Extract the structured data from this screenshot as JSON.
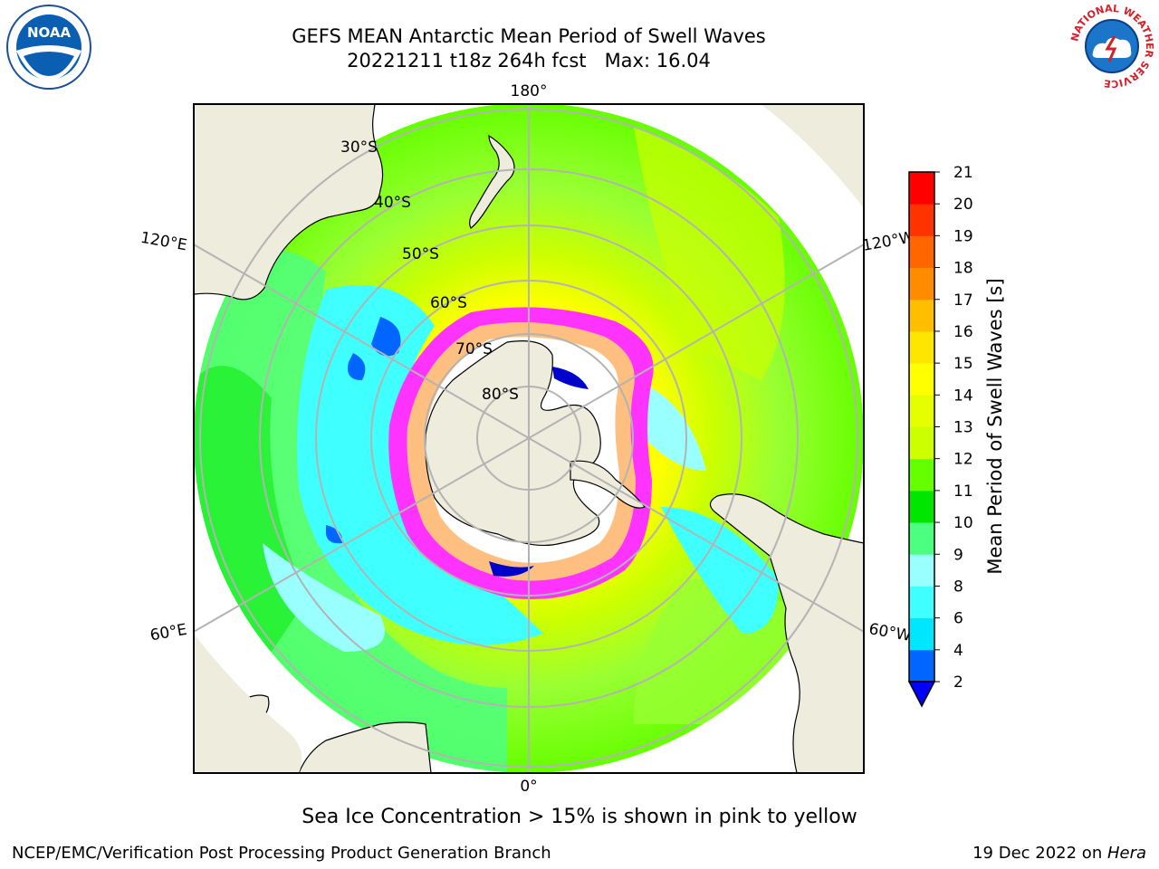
{
  "title": {
    "line1": "GEFS MEAN Antarctic Mean Period of Swell Waves",
    "line2": "20221211 t18z 264h fcst   Max: 16.04"
  },
  "map": {
    "projection": "south-polar-stereographic",
    "longitude_labels": {
      "top": "180°",
      "bottom": "0°",
      "upper_left": "120°E",
      "upper_right": "120°W",
      "lower_left": "60°E",
      "lower_right": "60°W"
    },
    "latitude_labels": [
      "30°S",
      "40°S",
      "50°S",
      "60°S",
      "70°S",
      "80°S"
    ]
  },
  "colorbar": {
    "label": "Mean Period of Swell Waves [s]",
    "ticks": [
      "2",
      "4",
      "6",
      "8",
      "9",
      "10",
      "11",
      "12",
      "13",
      "14",
      "15",
      "16",
      "17",
      "18",
      "19",
      "20",
      "21"
    ],
    "colors": [
      "#0066ff",
      "#00e6ff",
      "#40ffff",
      "#99ffff",
      "#4dff80",
      "#00e600",
      "#66ff00",
      "#ccff00",
      "#e6ff00",
      "#ffff00",
      "#ffe600",
      "#ffbf00",
      "#ff8c00",
      "#ff6600",
      "#ff3300",
      "#ff0000"
    ],
    "extend_color": "#0000ff"
  },
  "caption": "Sea Ice Concentration > 15% is shown in pink to yellow",
  "footer": {
    "left": "NCEP/EMC/Verification Post Processing Product Generation Branch",
    "right_prefix": "19 Dec 2022 on ",
    "right_italic": "Hera"
  },
  "logos": {
    "left": "NOAA",
    "right": "NATIONAL WEATHER SERVICE"
  }
}
